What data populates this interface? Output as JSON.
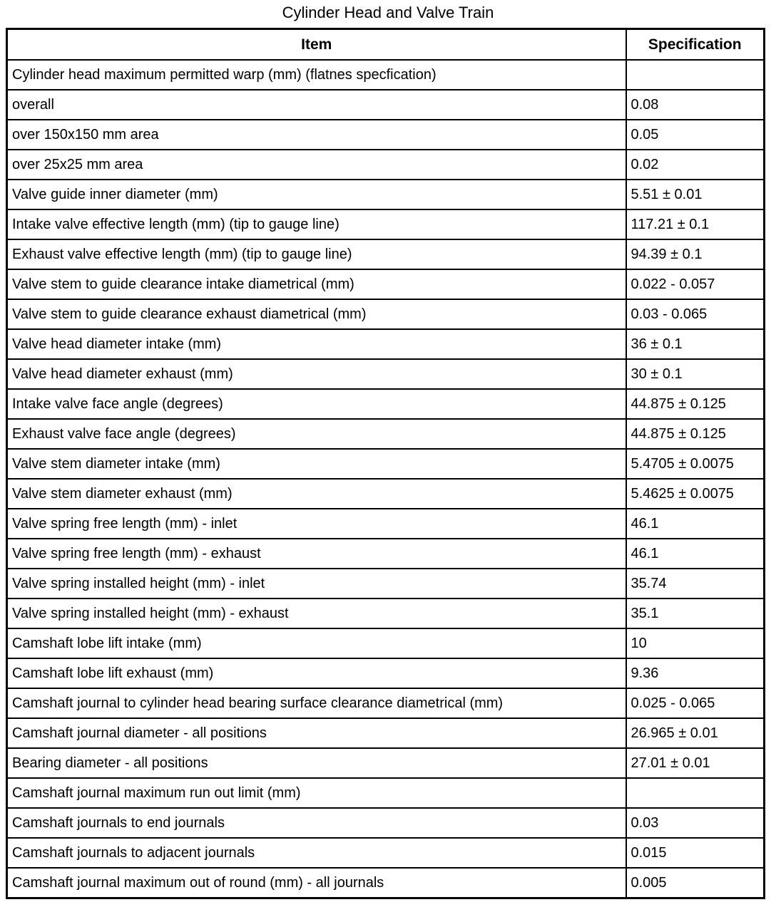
{
  "title": "Cylinder Head and Valve Train",
  "table": {
    "columns": [
      "Item",
      "Specification"
    ],
    "rows": [
      {
        "item": "Cylinder head maximum permitted warp (mm) (flatnes specfication)",
        "spec": ""
      },
      {
        "item": "overall",
        "spec": "0.08"
      },
      {
        "item": "over 150x150 mm area",
        "spec": "0.05"
      },
      {
        "item": "over 25x25 mm area",
        "spec": "0.02"
      },
      {
        "item": "Valve guide inner diameter (mm)",
        "spec": "5.51 ± 0.01"
      },
      {
        "item": "Intake valve effective length (mm) (tip to gauge line)",
        "spec": "117.21 ± 0.1"
      },
      {
        "item": "Exhaust valve effective length (mm) (tip to gauge line)",
        "spec": "94.39 ± 0.1"
      },
      {
        "item": "Valve stem to guide clearance intake diametrical (mm)",
        "spec": "0.022 - 0.057"
      },
      {
        "item": "Valve stem to guide clearance exhaust diametrical (mm)",
        "spec": "0.03 - 0.065"
      },
      {
        "item": "Valve head diameter intake (mm)",
        "spec": "36 ± 0.1"
      },
      {
        "item": "Valve head diameter exhaust (mm)",
        "spec": "30 ± 0.1"
      },
      {
        "item": "Intake valve face angle (degrees)",
        "spec": "44.875 ± 0.125"
      },
      {
        "item": "Exhaust valve face angle (degrees)",
        "spec": "44.875 ± 0.125"
      },
      {
        "item": "Valve stem diameter intake (mm)",
        "spec": "5.4705 ± 0.0075"
      },
      {
        "item": "Valve stem diameter exhaust (mm)",
        "spec": "5.4625 ± 0.0075"
      },
      {
        "item": "Valve spring free length (mm) - inlet",
        "spec": "46.1"
      },
      {
        "item": "Valve spring free length (mm) - exhaust",
        "spec": "46.1"
      },
      {
        "item": "Valve spring installed height (mm) - inlet",
        "spec": "35.74"
      },
      {
        "item": "Valve spring installed height (mm) - exhaust",
        "spec": "35.1"
      },
      {
        "item": "Camshaft lobe lift intake (mm)",
        "spec": "10"
      },
      {
        "item": "Camshaft lobe lift exhaust (mm)",
        "spec": "9.36"
      },
      {
        "item": "Camshaft journal to cylinder head bearing surface clearance diametrical (mm)",
        "spec": "0.025 - 0.065"
      },
      {
        "item": "Camshaft journal diameter - all positions",
        "spec": "26.965 ± 0.01"
      },
      {
        "item": "Bearing diameter - all positions",
        "spec": "27.01 ± 0.01"
      },
      {
        "item": "Camshaft journal maximum run out limit (mm)",
        "spec": ""
      },
      {
        "item": "Camshaft journals to end journals",
        "spec": "0.03"
      },
      {
        "item": "Camshaft journals to adjacent journals",
        "spec": "0.015"
      },
      {
        "item": "Camshaft journal maximum out of round (mm) - all journals",
        "spec": "0.005"
      }
    ]
  }
}
